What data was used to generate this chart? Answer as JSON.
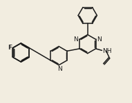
{
  "background_color": "#F2EDE0",
  "bond_color": "#1a1a1a",
  "atom_color": "#1a1a1a",
  "line_width": 1.1,
  "font_size": 6.5,
  "fig_width": 1.91,
  "fig_height": 1.5,
  "dpi": 100,
  "xlim": [
    0,
    10
  ],
  "ylim": [
    0,
    7.85
  ]
}
